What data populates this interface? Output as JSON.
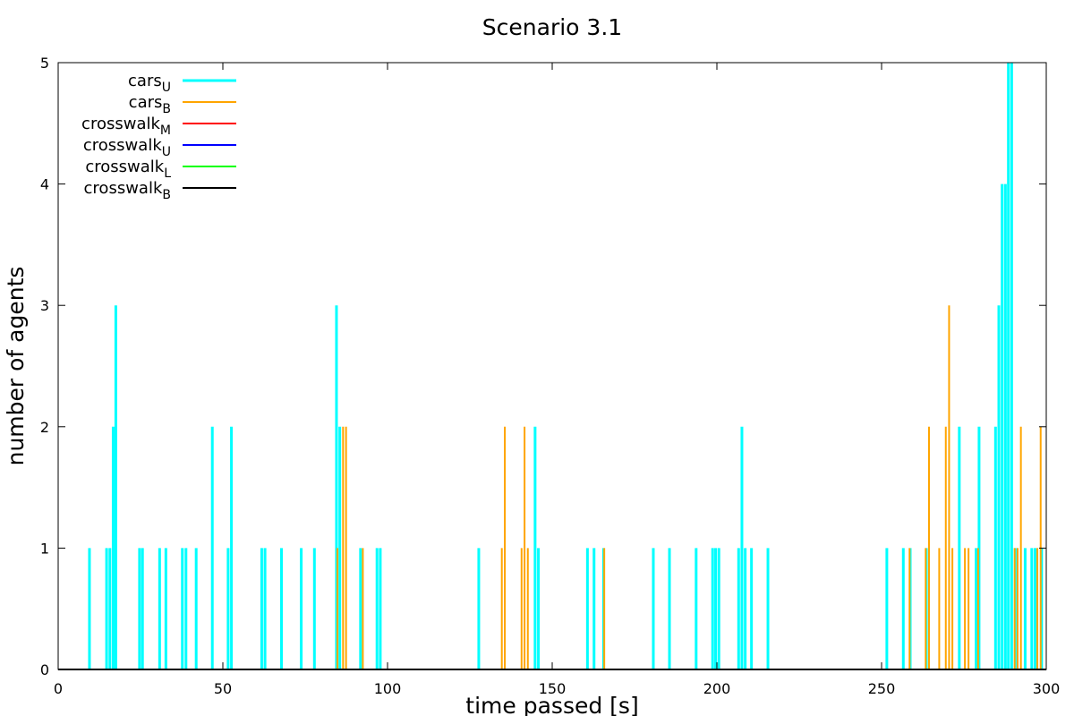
{
  "chart_data": {
    "type": "bar",
    "title": "Scenario 3.1",
    "xlabel": "time passed [s]",
    "ylabel": "number of agents",
    "xlim": [
      0,
      300
    ],
    "ylim": [
      0,
      5
    ],
    "xticks": [
      "0",
      "50",
      "100",
      "150",
      "200",
      "250",
      "300"
    ],
    "yticks": [
      "0",
      "1",
      "2",
      "3",
      "4",
      "5"
    ],
    "grid": false,
    "legend_position": "top-left",
    "series": [
      {
        "name": "cars",
        "sub": "U",
        "color": "#00ffff",
        "line_width": 3,
        "points": [
          [
            9.5,
            1
          ],
          [
            14.7,
            1
          ],
          [
            15.7,
            1
          ],
          [
            16.7,
            2
          ],
          [
            17.5,
            3
          ],
          [
            24.7,
            1
          ],
          [
            25.6,
            1
          ],
          [
            30.8,
            1
          ],
          [
            32.7,
            1
          ],
          [
            37.7,
            1
          ],
          [
            38.8,
            1
          ],
          [
            41.9,
            1
          ],
          [
            46.8,
            2
          ],
          [
            51.6,
            1
          ],
          [
            52.6,
            2
          ],
          [
            61.8,
            1
          ],
          [
            62.8,
            1
          ],
          [
            67.8,
            1
          ],
          [
            73.8,
            1
          ],
          [
            77.8,
            1
          ],
          [
            84.5,
            3
          ],
          [
            85.5,
            2
          ],
          [
            91.8,
            1
          ],
          [
            96.8,
            1
          ],
          [
            97.8,
            1
          ],
          [
            127.7,
            1
          ],
          [
            144.8,
            2
          ],
          [
            145.8,
            1
          ],
          [
            160.7,
            1
          ],
          [
            162.7,
            1
          ],
          [
            165.6,
            1
          ],
          [
            180.7,
            1
          ],
          [
            185.6,
            1
          ],
          [
            193.7,
            1
          ],
          [
            198.7,
            1
          ],
          [
            199.6,
            1
          ],
          [
            200.6,
            1
          ],
          [
            206.6,
            1
          ],
          [
            207.6,
            2
          ],
          [
            208.6,
            1
          ],
          [
            210.5,
            1
          ],
          [
            215.5,
            1
          ],
          [
            251.6,
            1
          ],
          [
            256.6,
            1
          ],
          [
            258.7,
            1
          ],
          [
            263.6,
            1
          ],
          [
            273.6,
            2
          ],
          [
            278.7,
            1
          ],
          [
            279.6,
            2
          ],
          [
            284.6,
            2
          ],
          [
            285.6,
            3
          ],
          [
            286.6,
            4
          ],
          [
            287.6,
            4
          ],
          [
            288.5,
            5
          ],
          [
            289.5,
            5
          ],
          [
            290.6,
            1
          ],
          [
            293.6,
            1
          ],
          [
            295.6,
            1
          ],
          [
            296.6,
            1
          ],
          [
            298.6,
            1
          ]
        ]
      },
      {
        "name": "cars",
        "sub": "B",
        "color": "#ffa500",
        "line_width": 2,
        "points": [
          [
            84.8,
            1
          ],
          [
            86.5,
            2
          ],
          [
            87.4,
            2
          ],
          [
            92.5,
            1
          ],
          [
            134.7,
            1
          ],
          [
            135.6,
            2
          ],
          [
            140.7,
            1
          ],
          [
            141.6,
            2
          ],
          [
            142.6,
            1
          ],
          [
            165.8,
            1
          ],
          [
            258.5,
            1
          ],
          [
            263.4,
            1
          ],
          [
            264.4,
            2
          ],
          [
            267.5,
            1
          ],
          [
            269.5,
            2
          ],
          [
            270.5,
            3
          ],
          [
            271.5,
            1
          ],
          [
            275.3,
            1
          ],
          [
            276.4,
            1
          ],
          [
            279.3,
            1
          ],
          [
            290.4,
            1
          ],
          [
            291.3,
            1
          ],
          [
            292.3,
            2
          ],
          [
            297.3,
            1
          ],
          [
            298.3,
            2
          ]
        ]
      },
      {
        "name": "crosswalk",
        "sub": "M",
        "color": "#ff0000",
        "line_width": 2,
        "points": []
      },
      {
        "name": "crosswalk",
        "sub": "U",
        "color": "#0000ff",
        "line_width": 2,
        "points": []
      },
      {
        "name": "crosswalk",
        "sub": "L",
        "color": "#00ff00",
        "line_width": 2,
        "points": []
      },
      {
        "name": "crosswalk",
        "sub": "B",
        "color": "#000000",
        "line_width": 2,
        "points": []
      }
    ]
  }
}
